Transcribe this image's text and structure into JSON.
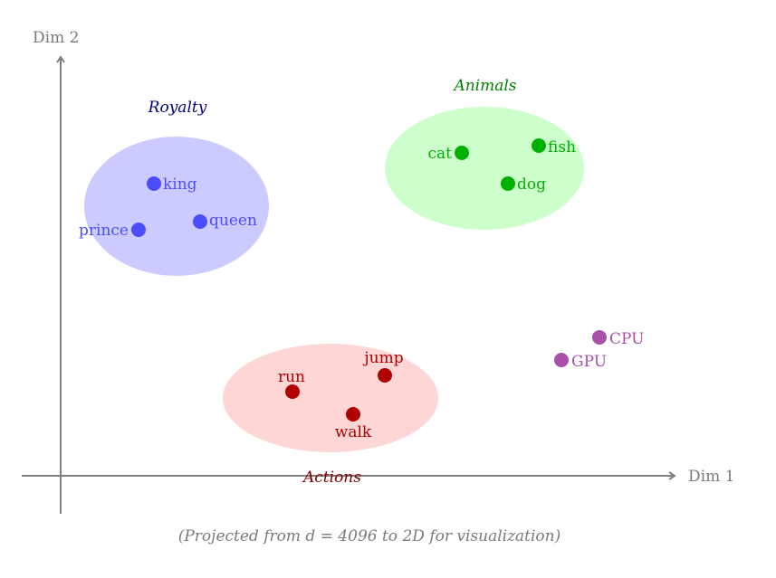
{
  "axes": {
    "x_label": "Dim 1",
    "y_label": "Dim 2"
  },
  "caption": "(Projected from d = 4096 to 2D for visualization)",
  "colors": {
    "axis": "#7f7f7f",
    "royalty_fill": "#cbcbff",
    "royalty_point": "#4d4dff",
    "royalty_title": "#000080",
    "animals_fill": "#ccffcc",
    "animals_point": "#00b000",
    "animals_title": "#008000",
    "actions_fill": "#ffd6d6",
    "actions_point": "#b00000",
    "actions_title": "#800000",
    "tech_point": "#aa4faa"
  },
  "clusters": {
    "royalty": {
      "title": "Royalty",
      "points": {
        "king": "king",
        "queen": "queen",
        "prince": "prince"
      }
    },
    "animals": {
      "title": "Animals",
      "points": {
        "cat": "cat",
        "fish": "fish",
        "dog": "dog"
      }
    },
    "actions": {
      "title": "Actions",
      "points": {
        "run": "run",
        "jump": "jump",
        "walk": "walk"
      }
    },
    "tech": {
      "points": {
        "cpu": "CPU",
        "gpu": "GPU"
      }
    }
  }
}
